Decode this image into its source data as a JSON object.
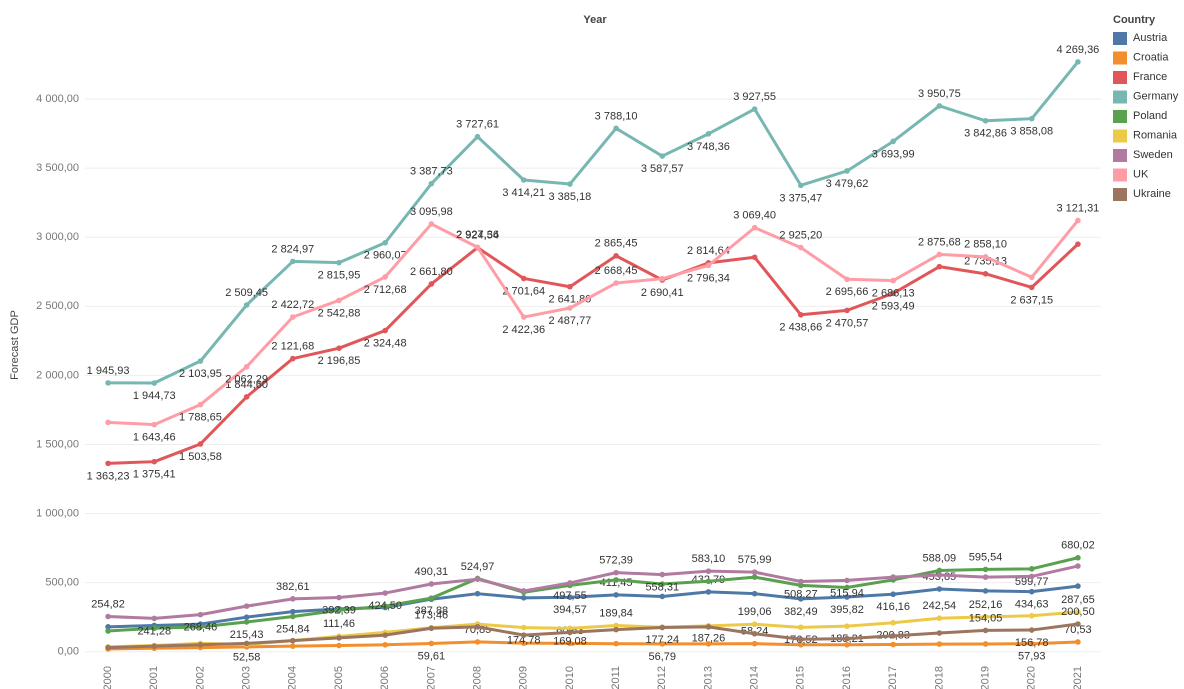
{
  "chart_data": {
    "type": "line",
    "title": "Year",
    "y_label": "Forecast GDP",
    "legend_title": "Country",
    "legend": "right",
    "grid": true,
    "categories": [
      "2000",
      "2001",
      "2002",
      "2003",
      "2004",
      "2005",
      "2006",
      "2007",
      "2008",
      "2009",
      "2010",
      "2011",
      "2012",
      "2013",
      "2014",
      "2015",
      "2016",
      "2017",
      "2018",
      "2019",
      "2020",
      "2021"
    ],
    "ylim": [
      -60,
      4500
    ],
    "yticks": [
      {
        "value": 0,
        "label": "0,00"
      },
      {
        "value": 500,
        "label": "500,00"
      },
      {
        "value": 1000,
        "label": "1 000,00"
      },
      {
        "value": 1500,
        "label": "1 500,00"
      },
      {
        "value": 2000,
        "label": "2 000,00"
      },
      {
        "value": 2500,
        "label": "2 500,00"
      },
      {
        "value": 3000,
        "label": "3 000,00"
      },
      {
        "value": 3500,
        "label": "3 500,00"
      },
      {
        "value": 4000,
        "label": "4 000,00"
      }
    ],
    "series": [
      {
        "name": "Austria",
        "color": "#4e79a7",
        "values": [
          180,
          190,
          200,
          250,
          290,
          310,
          320,
          380,
          420,
          390,
          394.57,
          411.45,
          400,
          432.79,
          420,
          382.49,
          395.82,
          416.16,
          453.85,
          440,
          434.63,
          475
        ],
        "value_labels": [
          null,
          null,
          null,
          null,
          null,
          null,
          null,
          null,
          null,
          null,
          "394,57",
          "411,45",
          null,
          "432,79",
          null,
          "382,49",
          "395,82",
          "416,16",
          "453,85",
          null,
          "434,63",
          null
        ]
      },
      {
        "name": "Croatia",
        "color": "#f28e2b",
        "values": [
          20,
          25,
          30,
          35,
          40,
          45,
          50,
          59.61,
          70.85,
          62,
          60.63,
          58,
          56.79,
          57,
          58.24,
          50,
          50,
          52,
          55,
          56,
          57.93,
          70.53
        ],
        "value_labels": [
          null,
          null,
          null,
          null,
          null,
          null,
          null,
          "59,61",
          "70,85",
          null,
          "60,63",
          null,
          "56,79",
          null,
          "58,24",
          null,
          null,
          null,
          null,
          null,
          "57,93",
          "70,53"
        ]
      },
      {
        "name": "France",
        "color": "#e15759",
        "values": [
          1363.23,
          1375.41,
          1503.58,
          1844.6,
          2121.68,
          2196.85,
          2324.48,
          2661.8,
          2924.54,
          2701.64,
          2641.8,
          2865.45,
          2690.41,
          2814.64,
          2855,
          2438.66,
          2470.57,
          2593.49,
          2787,
          2735.13,
          2637.15,
          2950
        ],
        "value_labels": [
          "1 363,23",
          "1 375,41",
          "1 503,58",
          "1 844,60",
          "2 121,68",
          "2 196,85",
          "2 324,48",
          "2 661,80",
          "2 924,54",
          "2 701,64",
          "2 641,80",
          "2 865,45",
          "2 690,41",
          "2 814,64",
          null,
          "2 438,66",
          "2 470,57",
          "2 593,49",
          null,
          "2 735,13",
          "2 637,15",
          null
        ]
      },
      {
        "name": "Germany",
        "color": "#76b7b2",
        "values": [
          1945.93,
          1944.73,
          2103.95,
          2509.45,
          2824.97,
          2815.95,
          2960.07,
          3387.73,
          3727.61,
          3414.21,
          3385.18,
          3788.1,
          3587.57,
          3748.36,
          3927.55,
          3375.47,
          3479.62,
          3693.99,
          3950.75,
          3842.86,
          3858.08,
          4269.36
        ],
        "value_labels": [
          "1 945,93",
          "1 944,73",
          "2 103,95",
          "2 509,45",
          "2 824,97",
          "2 815,95",
          "2 960,07",
          "3 387,73",
          "3 727,61",
          "3 414,21",
          "3 385,18",
          "3 788,10",
          "3 587,57",
          "3 748,36",
          "3 927,55",
          "3 375,47",
          "3 479,62",
          "3 693,99",
          "3 950,75",
          "3 842,86",
          "3 858,08",
          "4 269,36"
        ]
      },
      {
        "name": "Poland",
        "color": "#59a14f",
        "values": [
          150,
          170,
          180,
          215.43,
          254.84,
          300,
          330,
          387.88,
          530,
          430,
          480,
          520,
          490,
          510,
          540,
          480,
          465,
          520,
          588.09,
          595.54,
          599.77,
          680.02
        ],
        "value_labels": [
          null,
          null,
          null,
          "215,43",
          "254,84",
          null,
          null,
          "387,88",
          null,
          null,
          null,
          null,
          null,
          null,
          null,
          null,
          null,
          null,
          "588,09",
          "595,54",
          "599,77",
          "680,02"
        ]
      },
      {
        "name": "Romania",
        "color": "#edc948",
        "values": [
          35,
          45,
          60,
          52.58,
          80,
          111.46,
          140,
          173.46,
          200,
          174.78,
          169.08,
          189.84,
          177.24,
          187.26,
          199.06,
          176.52,
          185.21,
          209.83,
          242.54,
          252.16,
          260,
          287.65
        ],
        "value_labels": [
          null,
          null,
          null,
          "52,58",
          null,
          "111,46",
          null,
          "173,46",
          null,
          "174,78",
          "169,08",
          "189,84",
          "177,24",
          "187,26",
          "199,06",
          "176,52",
          "185,21",
          "209,83",
          "242,54",
          "252,16",
          null,
          "287,65"
        ]
      },
      {
        "name": "Sweden",
        "color": "#b07aa1",
        "values": [
          254.82,
          241.28,
          268.46,
          330,
          382.61,
          392.39,
          424.5,
          490.31,
          524.97,
          440,
          497.55,
          572.39,
          558.31,
          583.1,
          575.99,
          508.27,
          515.94,
          540,
          555,
          540,
          545,
          620
        ],
        "value_labels": [
          "254,82",
          "241,28",
          "268,46",
          null,
          "382,61",
          "392,39",
          "424,50",
          "490,31",
          "524,97",
          null,
          "497,55",
          "572,39",
          "558,31",
          "583,10",
          "575,99",
          "508,27",
          "515,94",
          null,
          null,
          null,
          null,
          null
        ]
      },
      {
        "name": "UK",
        "color": "#ff9da7",
        "values": [
          1660,
          1643.46,
          1788.65,
          2062.29,
          2422.72,
          2542.88,
          2712.68,
          3095.98,
          2927.36,
          2422.36,
          2487.77,
          2668.45,
          2700,
          2796.34,
          3069.4,
          2925.2,
          2695.66,
          2686.13,
          2875.68,
          2858.1,
          2710,
          3121.31
        ],
        "value_labels": [
          null,
          "1 643,46",
          "1 788,65",
          "2 062,29",
          "2 422,72",
          "2 542,88",
          "2 712,68",
          "3 095,98",
          "2 927,36",
          "2 422,36",
          "2 487,77",
          "2 668,45",
          null,
          "2 796,34",
          "3 069,40",
          "2 925,20",
          "2 695,66",
          "2 686,13",
          "2 875,68",
          "2 858,10",
          null,
          "3 121,31"
        ]
      },
      {
        "name": "Ukraine",
        "color": "#9c755f",
        "values": [
          30,
          40,
          50,
          60,
          80,
          100,
          120,
          170,
          180,
          120,
          140,
          160,
          175,
          180,
          130,
          90,
          95,
          115,
          135,
          154.05,
          156.78,
          200.5
        ],
        "value_labels": [
          null,
          null,
          null,
          null,
          null,
          null,
          null,
          null,
          null,
          null,
          null,
          null,
          null,
          null,
          null,
          null,
          null,
          null,
          null,
          "154,05",
          "156,78",
          "200,50"
        ]
      }
    ]
  }
}
